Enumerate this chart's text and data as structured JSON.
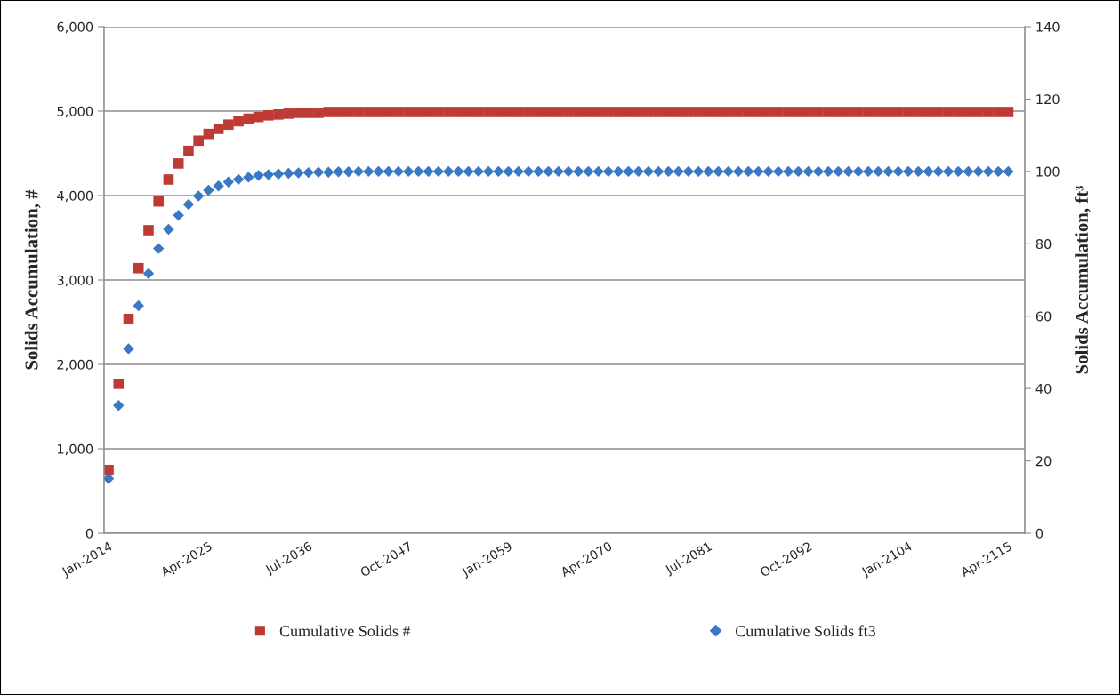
{
  "chart_data": {
    "type": "scatter",
    "ylabel": "Solids Accumulation, #",
    "y2label": "Solids Accumulation, ft³",
    "categories": [
      "Jan-2014",
      null,
      null,
      null,
      null,
      null,
      null,
      null,
      null,
      null,
      "Apr-2025",
      null,
      null,
      null,
      null,
      null,
      null,
      null,
      null,
      null,
      "Jul-2036",
      null,
      null,
      null,
      null,
      null,
      null,
      null,
      null,
      null,
      "Oct-2047",
      null,
      null,
      null,
      null,
      null,
      null,
      null,
      null,
      null,
      "Jan-2059",
      null,
      null,
      null,
      null,
      null,
      null,
      null,
      null,
      null,
      "Apr-2070",
      null,
      null,
      null,
      null,
      null,
      null,
      null,
      null,
      null,
      "Jul-2081",
      null,
      null,
      null,
      null,
      null,
      null,
      null,
      null,
      null,
      "Oct-2092",
      null,
      null,
      null,
      null,
      null,
      null,
      null,
      null,
      null,
      "Jan-2104",
      null,
      null,
      null,
      null,
      null,
      null,
      null,
      null,
      null,
      "Apr-2115"
    ],
    "series": [
      {
        "name": "Cumulative Solids #",
        "color": "#be3a34",
        "marker": "square",
        "values": [
          750,
          1770,
          2540,
          3140,
          3590,
          3930,
          4190,
          4380,
          4530,
          4650,
          4730,
          4790,
          4840,
          4880,
          4910,
          4930,
          4950,
          4960,
          4970,
          4980,
          4980,
          4980,
          4990,
          4990,
          4990,
          4990,
          4990,
          4990,
          4990,
          4990,
          4990,
          4990,
          4990,
          4990,
          4990,
          4990,
          4990,
          4990,
          4990,
          4990,
          4990,
          4990,
          4990,
          4990,
          4990,
          4990,
          4990,
          4990,
          4990,
          4990,
          4990,
          4990,
          4990,
          4990,
          4990,
          4990,
          4990,
          4990,
          4990,
          4990,
          4990,
          4990,
          4990,
          4990,
          4990,
          4990,
          4990,
          4990,
          4990,
          4990,
          4990,
          4990,
          4990,
          4990,
          4990,
          4990,
          4990,
          4990,
          4990,
          4990,
          4990,
          4990,
          4990,
          4990,
          4990,
          4990,
          4990,
          4990,
          4990,
          4990,
          4990
        ]
      },
      {
        "name": "Cumulative Solids ft3",
        "color": "#3b78c3",
        "marker": "diamond",
        "axis": "y2",
        "values": [
          15.1,
          35.3,
          51.0,
          62.9,
          71.8,
          78.7,
          84.0,
          87.9,
          90.9,
          93.2,
          94.8,
          96.0,
          97.1,
          97.8,
          98.4,
          98.9,
          99.1,
          99.3,
          99.5,
          99.6,
          99.7,
          99.8,
          99.8,
          99.9,
          99.9,
          100,
          100,
          100,
          100,
          100,
          100,
          100,
          100,
          100,
          100,
          100,
          100,
          100,
          100,
          100,
          100,
          100,
          100,
          100,
          100,
          100,
          100,
          100,
          100,
          100,
          100,
          100,
          100,
          100,
          100,
          100,
          100,
          100,
          100,
          100,
          100,
          100,
          100,
          100,
          100,
          100,
          100,
          100,
          100,
          100,
          100,
          100,
          100,
          100,
          100,
          100,
          100,
          100,
          100,
          100,
          100,
          100,
          100,
          100,
          100,
          100,
          100,
          100,
          100,
          100,
          100
        ]
      }
    ],
    "ylim": [
      0,
      6000
    ],
    "yticks": [
      0,
      {
        "value": 1000,
        "label": "1,000"
      },
      {
        "value": 2000,
        "label": "2,000"
      },
      {
        "value": 3000,
        "label": "3,000"
      },
      {
        "value": 4000,
        "label": "4,000"
      },
      {
        "value": 5000,
        "label": "5,000"
      },
      {
        "value": 6000,
        "label": "6,000"
      }
    ],
    "y2lim": [
      0,
      140
    ],
    "y2ticks": [
      0,
      20,
      40,
      60,
      80,
      100,
      120,
      140
    ],
    "grid": "y",
    "legend": "bottom"
  }
}
